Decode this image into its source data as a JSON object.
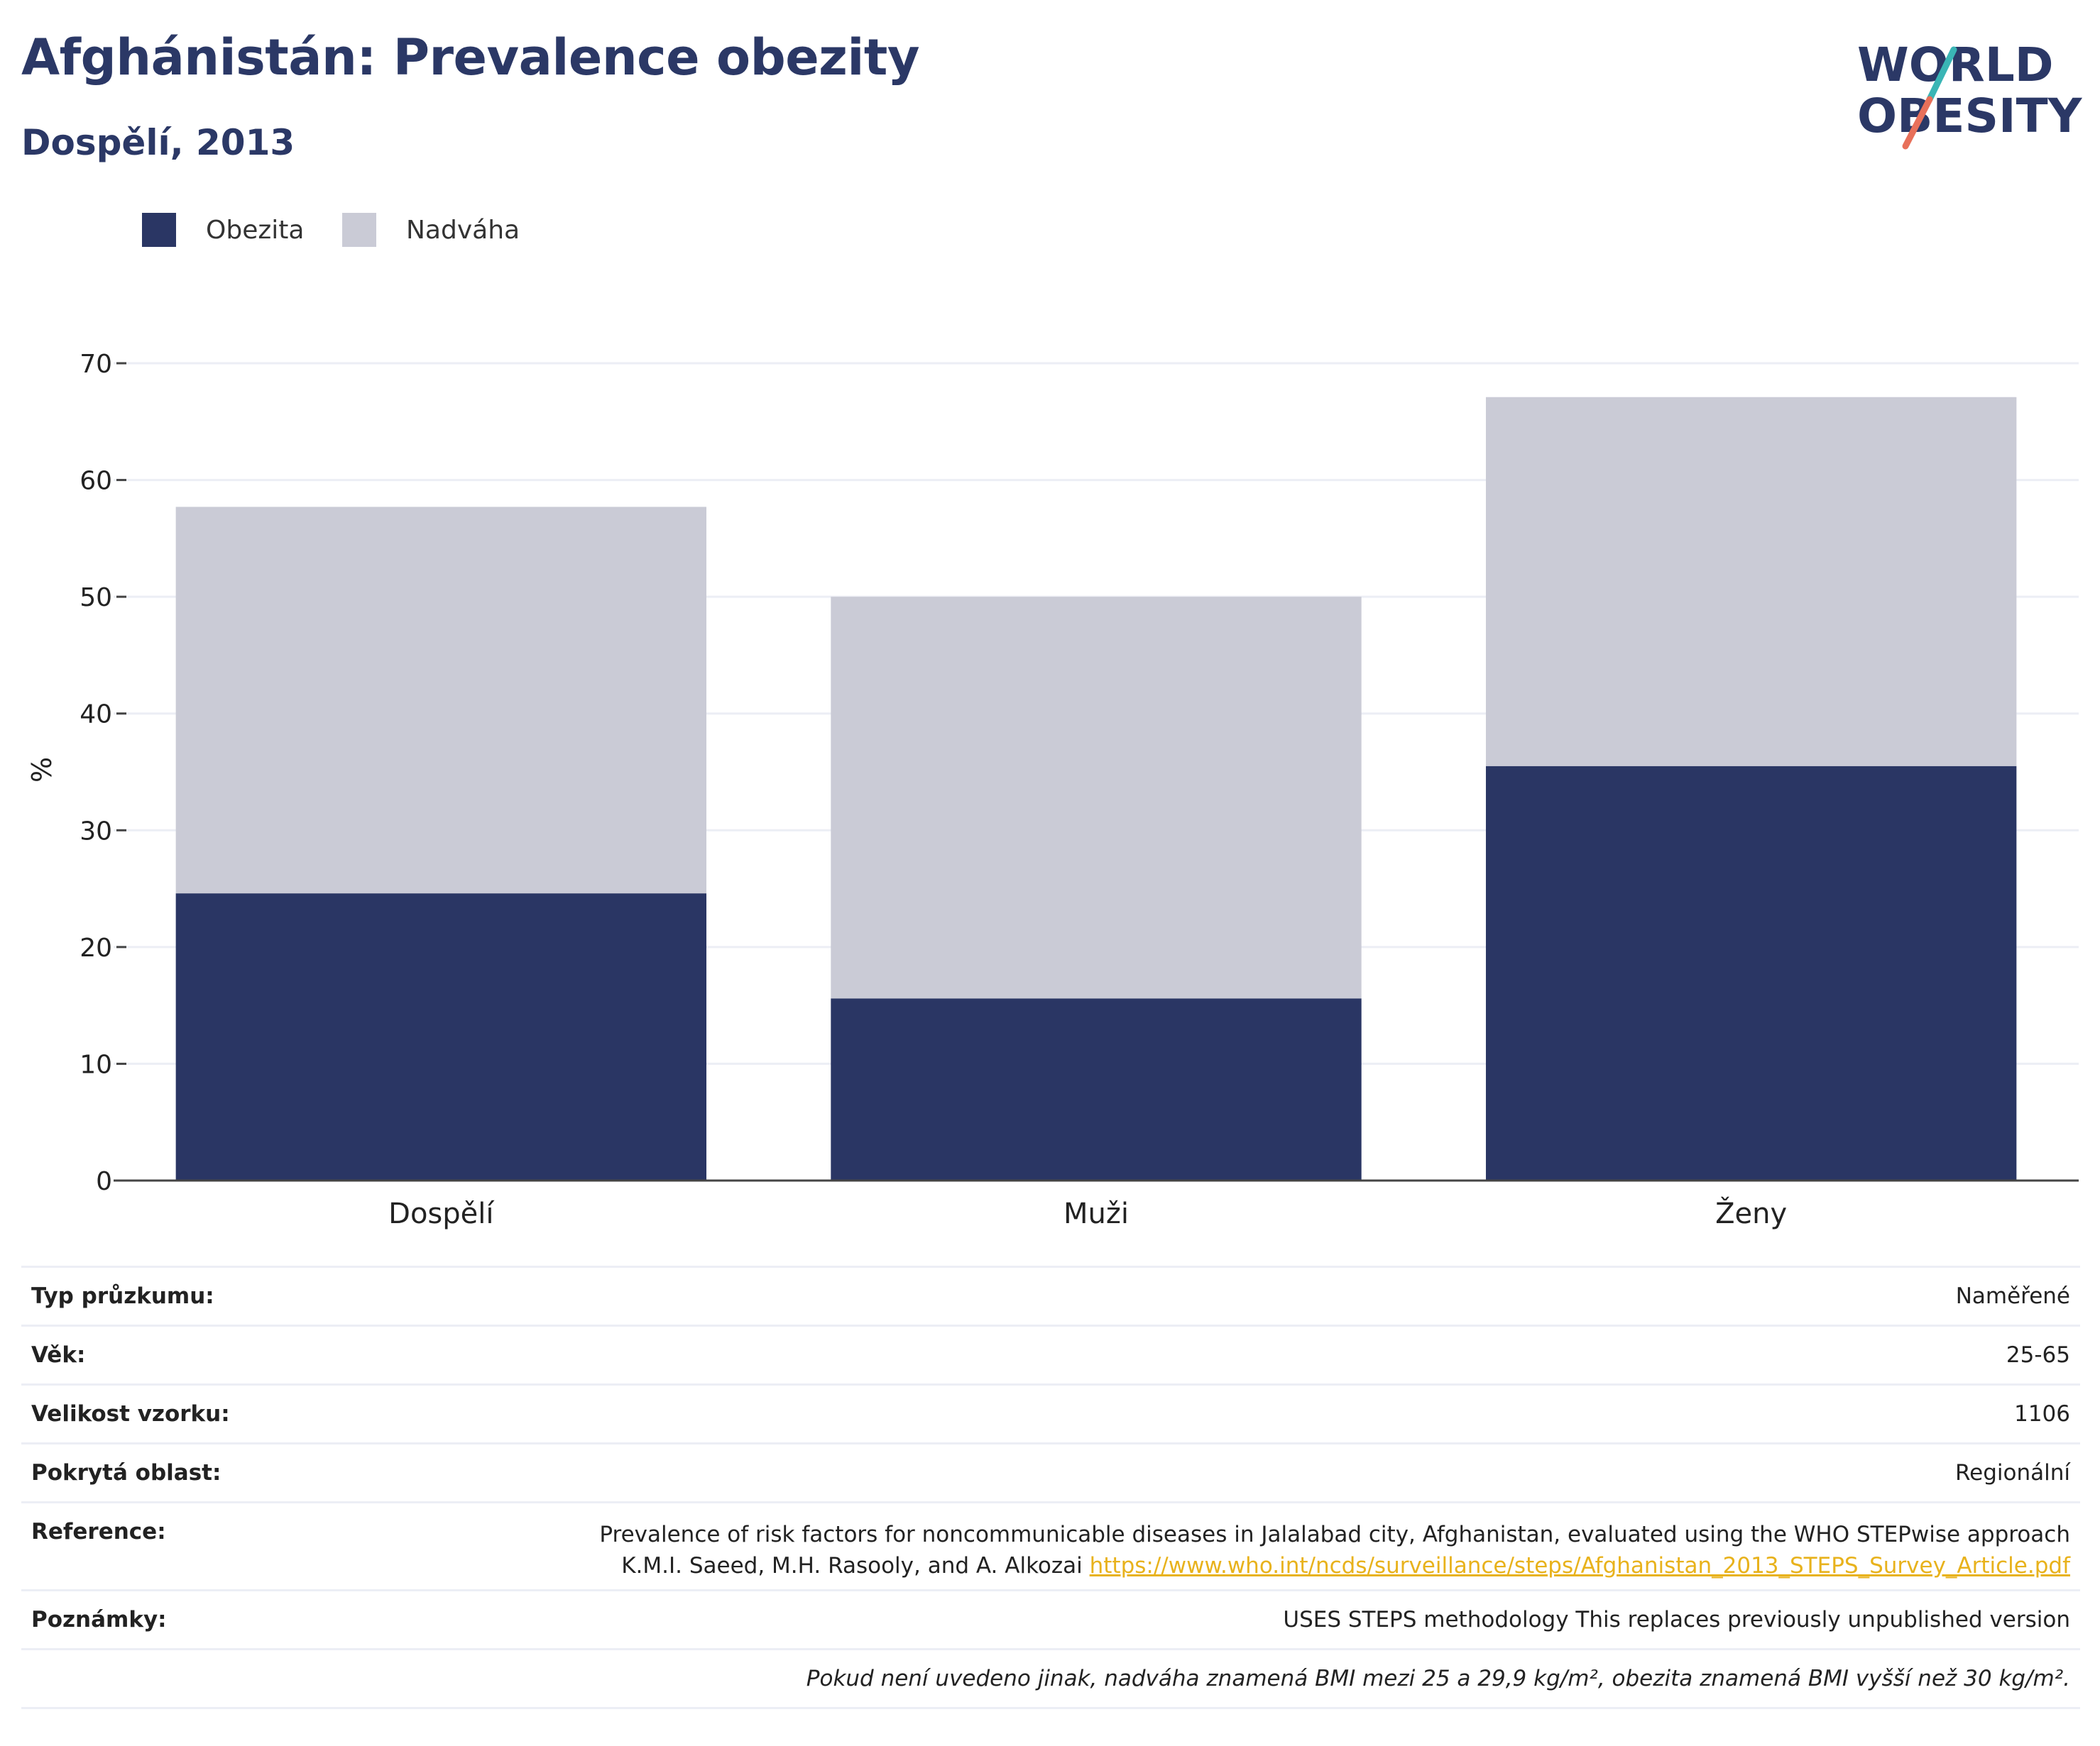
{
  "header": {
    "title": "Afghánistán: Prevalence obezity",
    "subtitle": "Dospělí, 2013"
  },
  "logo": {
    "line1": "WORLD",
    "line2": "OBESITY",
    "color": "#2b3866",
    "slash_top_color": "#3ab5b5",
    "slash_bottom_color": "#e8705a"
  },
  "colors": {
    "obesity": "#2a3664",
    "overweight": "#cacbd6",
    "grid": "#eceef5",
    "axis": "#444444",
    "link": "#e8b21c"
  },
  "chart_data": {
    "type": "bar",
    "stacked": true,
    "categories": [
      "Dospělí",
      "Muži",
      "Ženy"
    ],
    "series": [
      {
        "name": "Obezita",
        "values": [
          24.6,
          15.6,
          35.5
        ],
        "color": "#2a3664"
      },
      {
        "name": "Nadváha",
        "values": [
          33.1,
          34.4,
          31.6
        ],
        "color": "#cacbd6"
      }
    ],
    "ylabel": "%",
    "ylim": [
      0,
      70
    ],
    "yticks": [
      0,
      10,
      20,
      30,
      40,
      50,
      60,
      70
    ],
    "grid": true,
    "legend_position": "top-left"
  },
  "meta": {
    "rows": [
      {
        "key": "Typ průzkumu:",
        "value": "Naměřené"
      },
      {
        "key": "Věk:",
        "value": "25-65"
      },
      {
        "key": "Velikost vzorku:",
        "value": "1106"
      },
      {
        "key": "Pokrytá oblast:",
        "value": "Regionální"
      }
    ],
    "reference": {
      "key": "Reference:",
      "line1": "Prevalence of risk factors for noncommunicable diseases in Jalalabad city, Afghanistan, evaluated using the WHO STEPwise approach",
      "line2_prefix": "K.M.I. Saeed, M.H. Rasooly, and A. Alkozai",
      "link": "https://www.who.int/ncds/surveillance/steps/Afghanistan_2013_STEPS_Survey_Article.pdf"
    },
    "notes": {
      "key": "Poznámky:",
      "value": "USES STEPS methodology This replaces previously unpublished version"
    },
    "footnote": "Pokud není uvedeno jinak, nadváha znamená BMI mezi 25 a 29,9 kg/m², obezita znamená BMI vyšší než 30 kg/m²."
  }
}
